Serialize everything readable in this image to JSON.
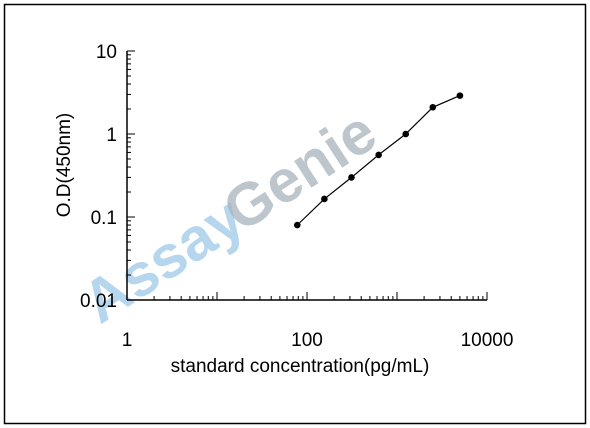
{
  "watermark": {
    "text": "AssayGenie",
    "color_assay": "#9ec9e8",
    "color_genie": "#a7b3bd"
  },
  "chart_data": {
    "type": "line",
    "xscale": "log",
    "yscale": "log",
    "xlabel": "standard concentration(pg/mL)",
    "ylabel": "O.D(450nm)",
    "xlim": [
      1,
      10000
    ],
    "ylim": [
      0.01,
      10
    ],
    "xticks": [
      {
        "value": 1,
        "label": "1"
      },
      {
        "value": 100,
        "label": "100"
      },
      {
        "value": 10000,
        "label": "10000"
      }
    ],
    "yticks": [
      {
        "value": 10,
        "label": "10"
      },
      {
        "value": 1,
        "label": "1"
      },
      {
        "value": 0.1,
        "label": "0.1"
      },
      {
        "value": 0.01,
        "label": "0.01"
      }
    ],
    "grid": false,
    "series": [
      {
        "x": [
          78,
          156,
          312,
          625,
          1250,
          2500,
          5000
        ],
        "y": [
          0.08,
          0.165,
          0.3,
          0.56,
          1.0,
          2.1,
          2.9
        ]
      }
    ]
  }
}
